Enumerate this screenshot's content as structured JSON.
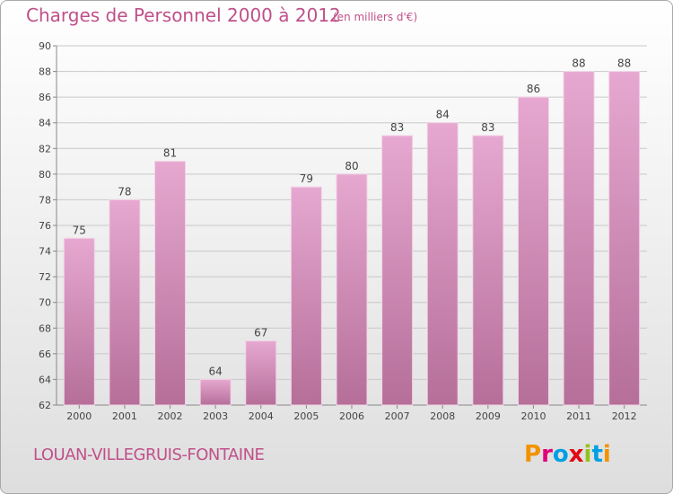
{
  "header": {
    "title": "Charges de Personnel 2000 à 2012",
    "unit_note": "(en milliers d'€)"
  },
  "footer": {
    "commune": "LOUAN-VILLEGRUIS-FONTAINE",
    "logo_text": "Proxiti",
    "logo_letters": [
      {
        "ch": "P",
        "color": "#f39200"
      },
      {
        "ch": "r",
        "color": "#e2007a"
      },
      {
        "ch": "o",
        "color": "#009fe3"
      },
      {
        "ch": "x",
        "color": "#e30613"
      },
      {
        "ch": "i",
        "color": "#95c11f"
      },
      {
        "ch": "t",
        "color": "#009fe3"
      },
      {
        "ch": "i",
        "color": "#f39200"
      }
    ]
  },
  "colors": {
    "bar_top": "#e6a8d0",
    "bar_bottom": "#b56f99",
    "title": "#c0508a",
    "grid": "#c8c8c8"
  },
  "chart_data": {
    "type": "bar",
    "title": "Charges de Personnel 2000 à 2012",
    "subtitle": "(en milliers d'€)",
    "categories": [
      "2000",
      "2001",
      "2002",
      "2003",
      "2004",
      "2005",
      "2006",
      "2007",
      "2008",
      "2009",
      "2010",
      "2011",
      "2012"
    ],
    "values": [
      75,
      78,
      81,
      64,
      67,
      79,
      80,
      83,
      84,
      83,
      86,
      88,
      88
    ],
    "ylim": [
      62,
      90
    ],
    "yticks": [
      62,
      64,
      66,
      68,
      70,
      72,
      74,
      76,
      78,
      80,
      82,
      84,
      86,
      88,
      90
    ],
    "grid": true,
    "data_labels": true
  }
}
